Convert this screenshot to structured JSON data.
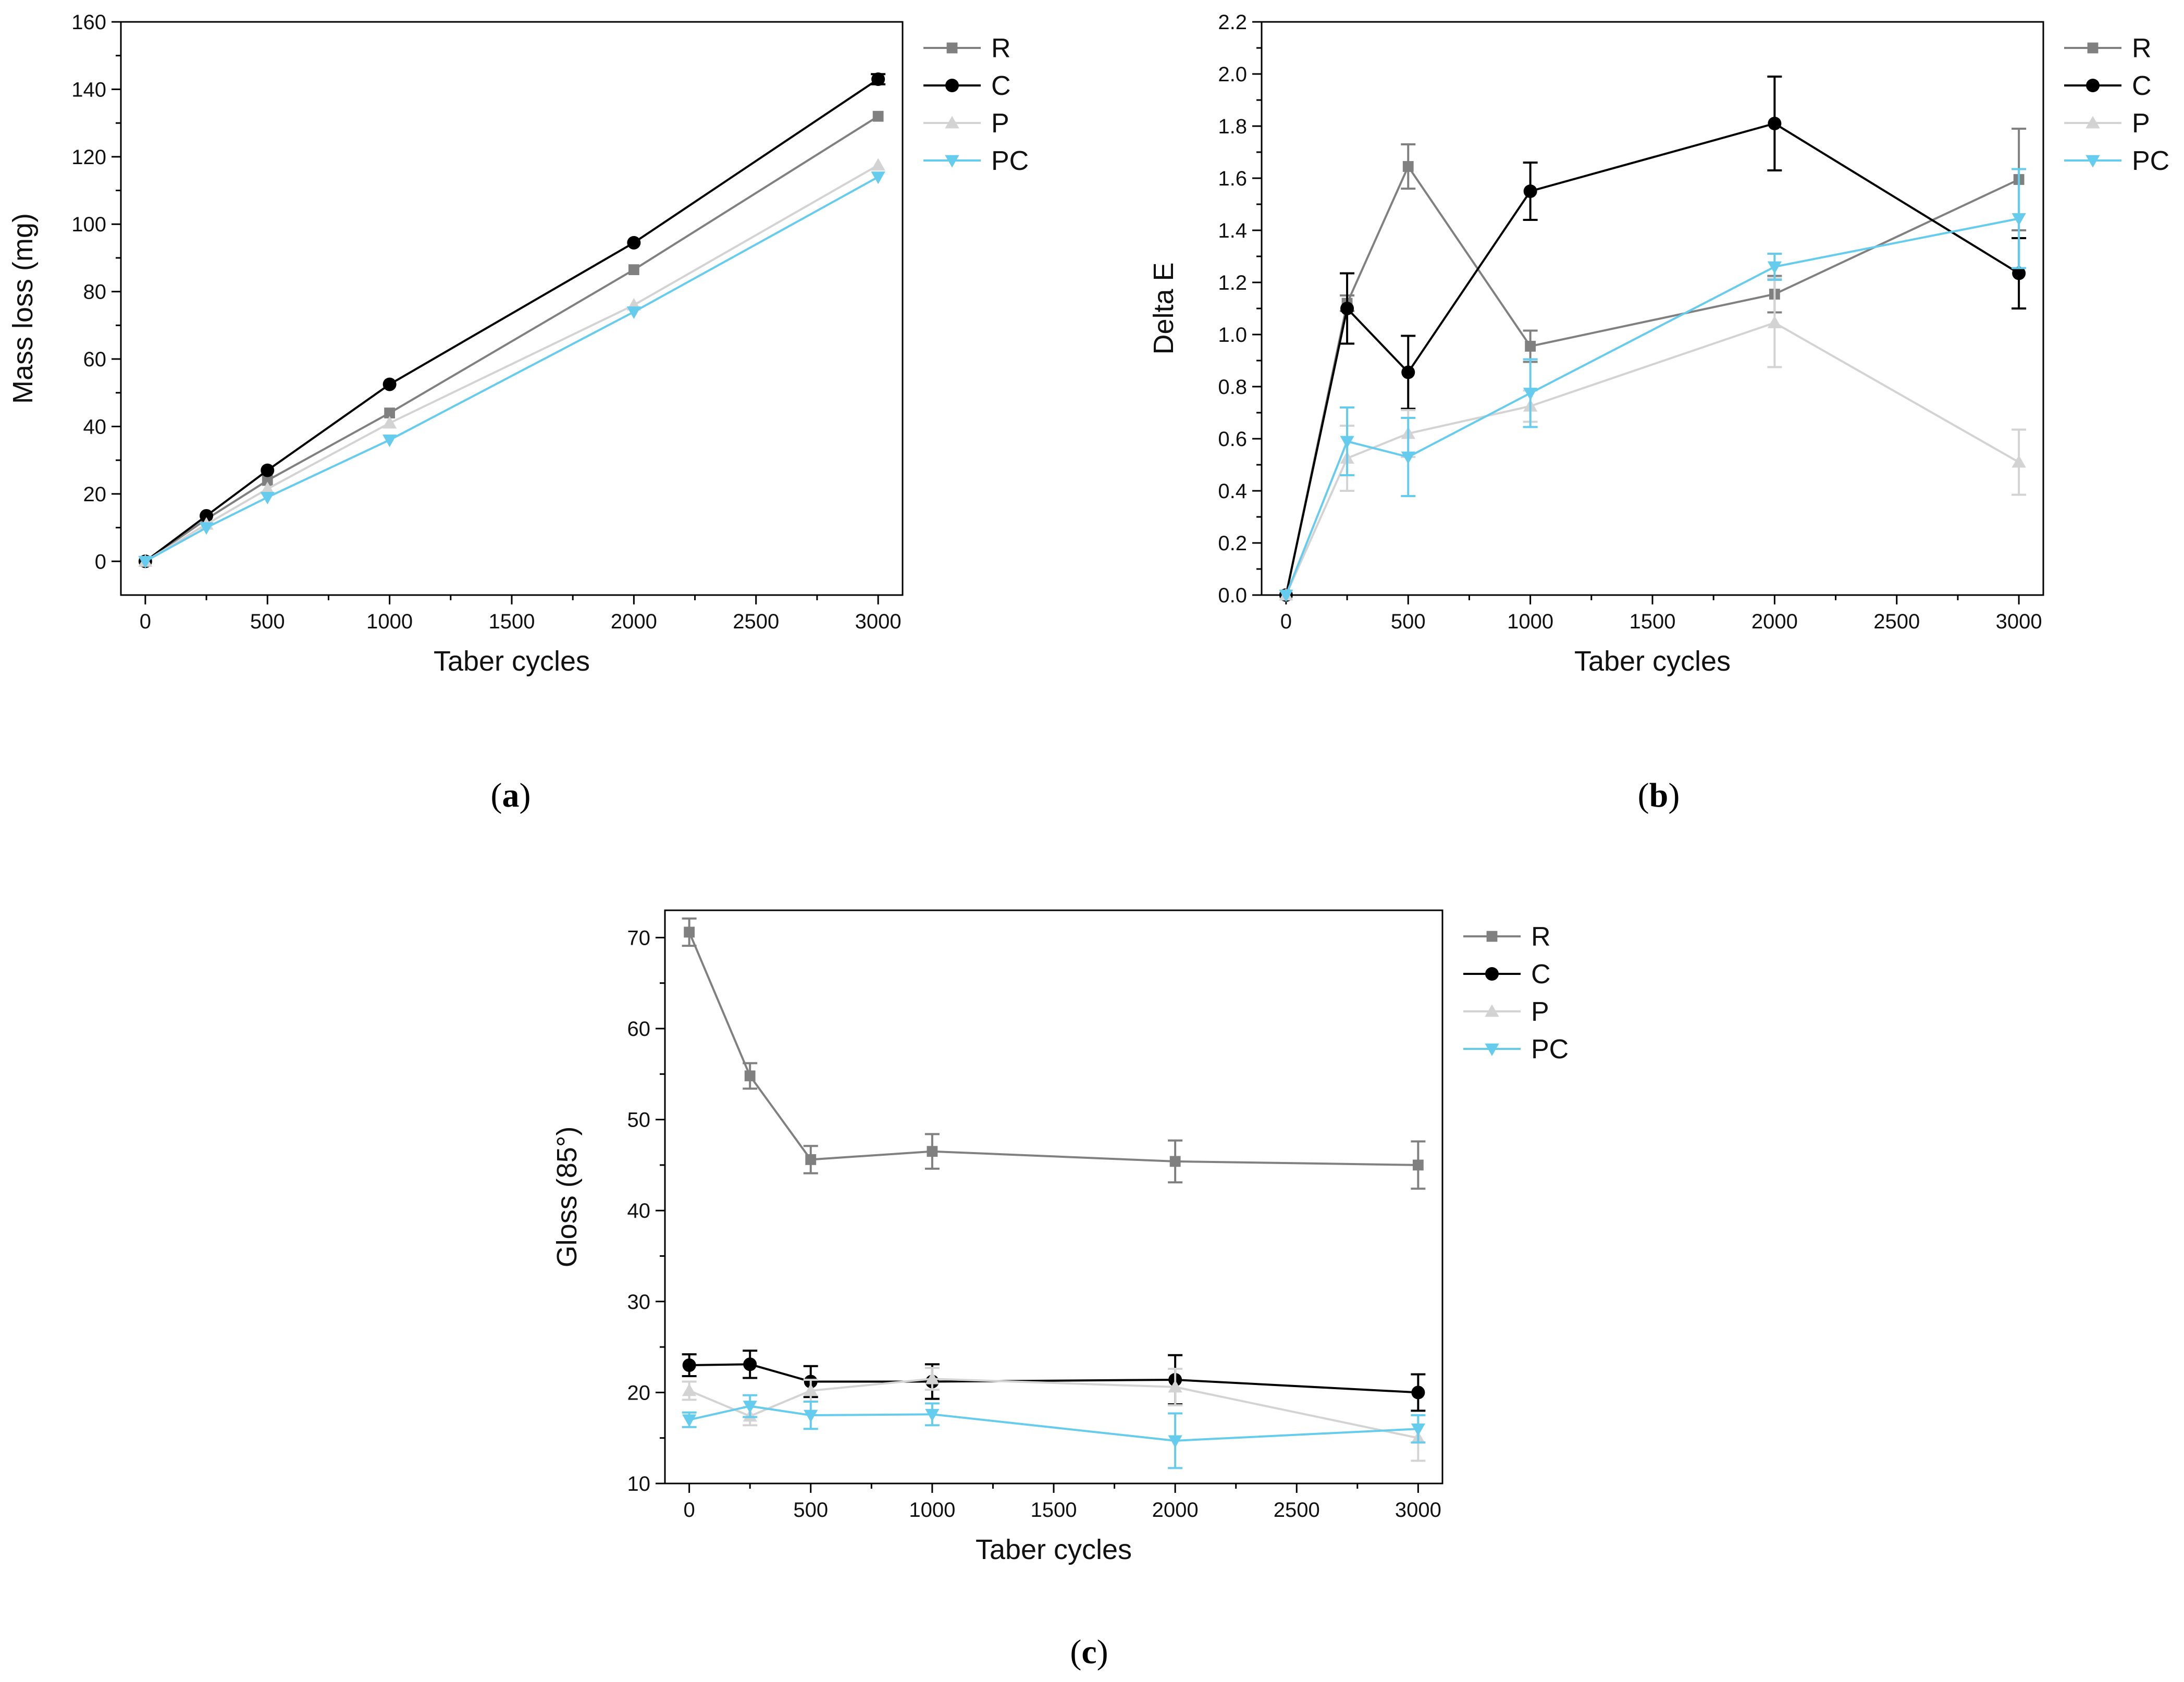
{
  "colors": {
    "R": "#808080",
    "C": "#000000",
    "P": "#d3d3d3",
    "PC": "#66ccee"
  },
  "chart_data": [
    {
      "type": "line",
      "panel_label": "(a)",
      "caption": {
        "open": "(",
        "letter": "a",
        "close": ")"
      },
      "xlabel": "Taber cycles",
      "ylabel": "Mass loss (mg)",
      "xlim": [
        -100,
        3100
      ],
      "ylim": [
        -10,
        160
      ],
      "xticks": [
        0,
        500,
        1000,
        1500,
        2000,
        2500,
        3000
      ],
      "xtick_labels": [
        "0",
        "500",
        "1000",
        "1500",
        "2000",
        "2500",
        "3000"
      ],
      "yticks": [
        0,
        20,
        40,
        60,
        80,
        100,
        120,
        140,
        160
      ],
      "ytick_labels": [
        "0",
        "20",
        "40",
        "60",
        "80",
        "100",
        "120",
        "140",
        "160"
      ],
      "x": [
        0,
        250,
        500,
        1000,
        2000,
        3000
      ],
      "legend": "top-right outside",
      "series": [
        {
          "name": "R",
          "marker": "square",
          "values": [
            0,
            12.5,
            24.0,
            44.0,
            86.5,
            132.0
          ],
          "errors": [
            0,
            0,
            0,
            0,
            0,
            0
          ]
        },
        {
          "name": "C",
          "marker": "circle",
          "values": [
            0,
            13.5,
            27.0,
            52.5,
            94.5,
            143.0
          ],
          "errors": [
            0,
            0,
            0,
            0,
            0,
            1.5
          ]
        },
        {
          "name": "P",
          "marker": "triangle",
          "values": [
            0,
            11.0,
            21.5,
            41.0,
            76.0,
            117.5
          ],
          "errors": [
            0,
            0,
            0,
            0,
            0,
            0
          ]
        },
        {
          "name": "PC",
          "marker": "triangle-down",
          "values": [
            0,
            10.0,
            19.0,
            36.0,
            74.0,
            114.0
          ],
          "errors": [
            0,
            0,
            0,
            0,
            0,
            0
          ]
        }
      ]
    },
    {
      "type": "line",
      "panel_label": "(b)",
      "caption": {
        "open": "(",
        "letter": "b",
        "close": ")"
      },
      "xlabel": "Taber cycles",
      "ylabel": "Delta E",
      "xlim": [
        -100,
        3100
      ],
      "ylim": [
        0,
        2.2
      ],
      "xticks": [
        0,
        500,
        1000,
        1500,
        2000,
        2500,
        3000
      ],
      "xtick_labels": [
        "0",
        "500",
        "1000",
        "1500",
        "2000",
        "2500",
        "3000"
      ],
      "yticks": [
        0,
        0.2,
        0.4,
        0.6,
        0.8,
        1.0,
        1.2,
        1.4,
        1.6,
        1.8,
        2.0,
        2.2
      ],
      "ytick_labels": [
        "0.0",
        "0.2",
        "0.4",
        "0.6",
        "0.8",
        "1.0",
        "1.2",
        "1.4",
        "1.6",
        "1.8",
        "2.0",
        "2.2"
      ],
      "x": [
        0,
        250,
        500,
        1000,
        2000,
        3000
      ],
      "legend": "top-right outside",
      "series": [
        {
          "name": "R",
          "marker": "square",
          "values": [
            0,
            1.12,
            1.645,
            0.955,
            1.155,
            1.595
          ],
          "errors": [
            0,
            0.03,
            0.085,
            0.06,
            0.07,
            0.195
          ]
        },
        {
          "name": "C",
          "marker": "circle",
          "values": [
            0,
            1.1,
            0.855,
            1.55,
            1.81,
            1.235
          ],
          "errors": [
            0,
            0.135,
            0.14,
            0.11,
            0.18,
            0.135
          ]
        },
        {
          "name": "P",
          "marker": "triangle",
          "values": [
            0,
            0.525,
            0.62,
            0.725,
            1.045,
            0.51
          ],
          "errors": [
            0,
            0.125,
            0.09,
            0.06,
            0.17,
            0.125
          ]
        },
        {
          "name": "PC",
          "marker": "triangle-down",
          "values": [
            0,
            0.59,
            0.53,
            0.775,
            1.26,
            1.445
          ],
          "errors": [
            0,
            0.13,
            0.15,
            0.13,
            0.05,
            0.19
          ]
        }
      ]
    },
    {
      "type": "line",
      "panel_label": "(c)",
      "caption": {
        "open": "(",
        "letter": "c",
        "close": ")"
      },
      "xlabel": "Taber cycles",
      "ylabel": "Gloss (85°)",
      "xlim": [
        -100,
        3100
      ],
      "ylim": [
        10,
        73
      ],
      "xticks": [
        0,
        500,
        1000,
        1500,
        2000,
        2500,
        3000
      ],
      "xtick_labels": [
        "0",
        "500",
        "1000",
        "1500",
        "2000",
        "2500",
        "3000"
      ],
      "yticks": [
        10,
        20,
        30,
        40,
        50,
        60,
        70
      ],
      "ytick_labels": [
        "10",
        "20",
        "30",
        "40",
        "50",
        "60",
        "70"
      ],
      "x": [
        0,
        250,
        500,
        1000,
        2000,
        3000
      ],
      "legend": "top-right outside",
      "series": [
        {
          "name": "R",
          "marker": "square",
          "values": [
            70.6,
            54.8,
            45.6,
            46.5,
            45.4,
            45.0
          ],
          "errors": [
            1.5,
            1.4,
            1.5,
            1.9,
            2.3,
            2.6
          ]
        },
        {
          "name": "C",
          "marker": "circle",
          "values": [
            23.0,
            23.1,
            21.2,
            21.2,
            21.4,
            20.0
          ],
          "errors": [
            1.2,
            1.5,
            1.7,
            1.9,
            2.7,
            2.0
          ]
        },
        {
          "name": "P",
          "marker": "triangle",
          "values": [
            20.2,
            17.4,
            20.2,
            21.5,
            20.6,
            15.0
          ],
          "errors": [
            1.0,
            1.0,
            1.2,
            1.2,
            2.0,
            2.5
          ]
        },
        {
          "name": "PC",
          "marker": "triangle-down",
          "values": [
            17.0,
            18.5,
            17.5,
            17.6,
            14.7,
            16.0
          ],
          "errors": [
            0.8,
            1.2,
            1.5,
            1.2,
            3.0,
            1.5
          ]
        }
      ]
    }
  ]
}
